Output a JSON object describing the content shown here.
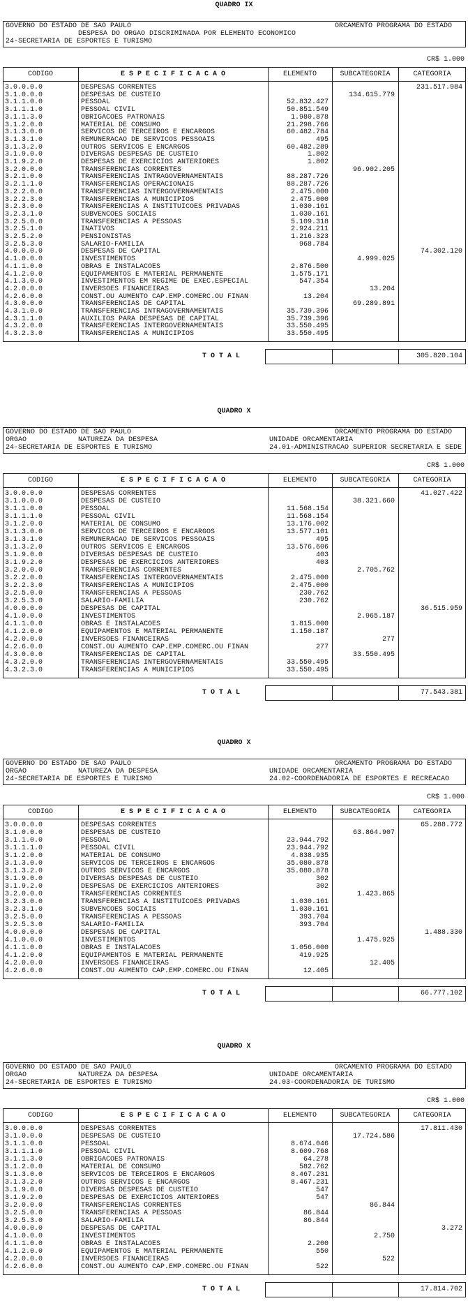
{
  "sections": [
    {
      "title": "QUADRO IX",
      "header": [
        [
          "GOVERNO DO ESTADO DE SAO PAULO",
          null,
          null,
          "ORCAMENTO PROGRAMA DO ESTADO"
        ],
        [
          null,
          "DESPESA DO ORGAO DISCRIMINADA POR ELEMENTO ECONOMICO",
          null,
          null
        ],
        [
          "24-SECRETARIA DE ESPORTES E TURISMO",
          null,
          null,
          null
        ]
      ],
      "currency": "CR$ 1.000",
      "columns": [
        "CODIGO",
        "E S P E C I F I C A C A O",
        "ELEMENTO",
        "SUBCATEGORIA",
        "CATEGORIA"
      ],
      "rows": [
        {
          "code": "3.0.0.0.0",
          "spec": "DESPESAS CORRENTES",
          "categoria": "231.517.984"
        },
        {
          "code": "3.1.0.0.0",
          "spec": "DESPESAS DE CUSTEIO",
          "subcategoria": "134.615.779"
        },
        {
          "code": "3.1.1.0.0",
          "spec": "PESSOAL",
          "elemento": "52.832.427"
        },
        {
          "code": "3.1.1.1.0",
          "spec": "PESSOAL CIVIL",
          "elemento": "50.851.549"
        },
        {
          "code": "3.1.1.3.0",
          "spec": "OBRIGACOES PATRONAIS",
          "elemento": "1.980.878"
        },
        {
          "code": "3.1.2.0.0",
          "spec": "MATERIAL DE CONSUMO",
          "elemento": "21.298.766"
        },
        {
          "code": "3.1.3.0.0",
          "spec": "SERVICOS DE TERCEIROS E ENCARGOS",
          "elemento": "60.482.784"
        },
        {
          "code": "3.1.3.1.0",
          "spec": "REMUNERACAO DE SERVICOS PESSOAIS",
          "elemento": "495"
        },
        {
          "code": "3.1.3.2.0",
          "spec": "OUTROS SERVICOS E ENCARGOS",
          "elemento": "60.482.289"
        },
        {
          "code": "3.1.9.0.0",
          "spec": "DIVERSAS DESPESAS DE CUSTEIO",
          "elemento": "1.802"
        },
        {
          "code": "3.1.9.2.0",
          "spec": "DESPESAS DE EXERCICIOS ANTERIORES",
          "elemento": "1.802"
        },
        {
          "code": "3.2.0.0.0",
          "spec": "TRANSFERENCIAS CORRENTES",
          "subcategoria": "96.902.205"
        },
        {
          "code": "3.2.1.0.0",
          "spec": "TRANSFERENCIAS INTRAGOVERNAMENTAIS",
          "elemento": "88.287.726"
        },
        {
          "code": "3.2.1.1.0",
          "spec": "TRANSFERENCIAS OPERACIONAIS",
          "elemento": "88.287.726"
        },
        {
          "code": "3.2.2.0.0",
          "spec": "TRANSFERENCIAS INTERGOVERNAMENTAIS",
          "elemento": "2.475.000"
        },
        {
          "code": "3.2.2.3.0",
          "spec": "TRANSFERENCIAS A MUNICIPIOS",
          "elemento": "2.475.000"
        },
        {
          "code": "3.2.3.0.0",
          "spec": "TRANSFERENCIAS A INSTITUICOES PRIVADAS",
          "elemento": "1.030.161"
        },
        {
          "code": "3.2.3.1.0",
          "spec": "SUBVENCOES SOCIAIS",
          "elemento": "1.030.161"
        },
        {
          "code": "3.2.5.0.0",
          "spec": "TRANSFERENCIAS A PESSOAS",
          "elemento": "5.109.318"
        },
        {
          "code": "3.2.5.1.0",
          "spec": "INATIVOS",
          "elemento": "2.924.211"
        },
        {
          "code": "3.2.5.2.0",
          "spec": "PENSIONISTAS",
          "elemento": "1.216.323"
        },
        {
          "code": "3.2.5.3.0",
          "spec": "SALARIO-FAMILIA",
          "elemento": "968.784"
        },
        {
          "code": "4.0.0.0.0",
          "spec": "DESPESAS DE CAPITAL",
          "categoria": "74.302.120"
        },
        {
          "code": "4.1.0.0.0",
          "spec": "INVESTIMENTOS",
          "subcategoria": "4.999.025"
        },
        {
          "code": "4.1.1.0.0",
          "spec": "OBRAS E INSTALACOES",
          "elemento": "2.876.500"
        },
        {
          "code": "4.1.2.0.0",
          "spec": "EQUIPAMENTOS E MATERIAL PERMANENTE",
          "elemento": "1.575.171"
        },
        {
          "code": "4.1.3.0.0",
          "spec": "INVESTIMENTOS EM REGIME DE EXEC.ESPECIAL",
          "elemento": "547.354"
        },
        {
          "code": "4.2.0.0.0",
          "spec": "INVERSOES FINANCEIRAS",
          "subcategoria": "13.204"
        },
        {
          "code": "4.2.6.0.0",
          "spec": "CONST.OU AUMENTO CAP.EMP.COMERC.OU FINAN",
          "elemento": "13.204"
        },
        {
          "code": "4.3.0.0.0",
          "spec": "TRANSFERENCIAS DE CAPITAL",
          "subcategoria": "69.289.891"
        },
        {
          "code": "4.3.1.0.0",
          "spec": "TRANSFERENCIAS INTRAGOVERNAMENTAIS",
          "elemento": "35.739.396"
        },
        {
          "code": "4.3.1.1.0",
          "spec": "AUXILIOS PARA DESPESAS DE CAPITAL",
          "elemento": "35.739.396"
        },
        {
          "code": "4.3.2.0.0",
          "spec": "TRANSFERENCIAS INTERGOVERNAMENTAIS",
          "elemento": "33.550.495"
        },
        {
          "code": "4.3.2.3.0",
          "spec": "TRANSFERENCIAS A MUNICIPIOS",
          "elemento": "33.550.495"
        }
      ],
      "total_label": "T O T A L",
      "total": "305.820.104"
    },
    {
      "title": "QUADRO X",
      "header": [
        [
          "GOVERNO DO ESTADO DE SAO PAULO",
          null,
          null,
          "ORCAMENTO PROGRAMA DO ESTADO"
        ],
        [
          "ORGAO",
          "NATUREZA DA DESPESA",
          "UNIDADE ORCAMENTARIA",
          null
        ],
        [
          "24-SECRETARIA DE ESPORTES E TURISMO",
          null,
          "24.01-ADMINISTRACAO SUPERIOR SECRETARIA E SEDE",
          null
        ]
      ],
      "currency": "CR$ 1.000",
      "columns": [
        "CODIGO",
        "E S P E C I F I C A C A O",
        "ELEMENTO",
        "SUBCATEGORIA",
        "CATEGORIA"
      ],
      "rows": [
        {
          "code": "3.0.0.0.0",
          "spec": "DESPESAS CORRENTES",
          "categoria": "41.027.422"
        },
        {
          "code": "3.1.0.0.0",
          "spec": "DESPESAS DE CUSTEIO",
          "subcategoria": "38.321.660"
        },
        {
          "code": "3.1.1.0.0",
          "spec": "PESSOAL",
          "elemento": "11.568.154"
        },
        {
          "code": "3.1.1.1.0",
          "spec": "PESSOAL CIVIL",
          "elemento": "11.568.154"
        },
        {
          "code": "3.1.2.0.0",
          "spec": "MATERIAL DE CONSUMO",
          "elemento": "13.176.002"
        },
        {
          "code": "3.1.3.0.0",
          "spec": "SERVICOS DE TERCEIROS E ENCARGOS",
          "elemento": "13.577.101"
        },
        {
          "code": "3.1.3.1.0",
          "spec": "REMUNERACAO DE SERVICOS PESSOAIS",
          "elemento": "495"
        },
        {
          "code": "3.1.3.2.0",
          "spec": "OUTROS SERVICOS E ENCARGOS",
          "elemento": "13.576.606"
        },
        {
          "code": "3.1.9.0.0",
          "spec": "DIVERSAS DESPESAS DE CUSTEIO",
          "elemento": "403"
        },
        {
          "code": "3.1.9.2.0",
          "spec": "DESPESAS DE EXERCICIOS ANTERIORES",
          "elemento": "403"
        },
        {
          "code": "3.2.0.0.0",
          "spec": "TRANSFERENCIAS CORRENTES",
          "subcategoria": "2.705.762"
        },
        {
          "code": "3.2.2.0.0",
          "spec": "TRANSFERENCIAS INTERGOVERNAMENTAIS",
          "elemento": "2.475.000"
        },
        {
          "code": "3.2.2.3.0",
          "spec": "TRANSFERENCIAS A MUNICIPIOS",
          "elemento": "2.475.000"
        },
        {
          "code": "3.2.5.0.0",
          "spec": "TRANSFERENCIAS A PESSOAS",
          "elemento": "230.762"
        },
        {
          "code": "3.2.5.3.0",
          "spec": "SALARIO-FAMILIA",
          "elemento": "230.762"
        },
        {
          "code": "4.0.0.0.0",
          "spec": "DESPESAS DE CAPITAL",
          "categoria": "36.515.959"
        },
        {
          "code": "4.1.0.0.0",
          "spec": "INVESTIMENTOS",
          "subcategoria": "2.965.187"
        },
        {
          "code": "4.1.1.0.0",
          "spec": "OBRAS E INSTALACOES",
          "elemento": "1.815.000"
        },
        {
          "code": "4.1.2.0.0",
          "spec": "EQUIPAMENTOS E MATERIAL PERMANENTE",
          "elemento": "1.150.187"
        },
        {
          "code": "4.2.0.0.0",
          "spec": "INVERSOES FINANCEIRAS",
          "subcategoria": "277"
        },
        {
          "code": "4.2.6.0.0",
          "spec": "CONST.OU AUMENTO CAP.EMP.COMERC.OU FINAN",
          "elemento": "277"
        },
        {
          "code": "4.3.0.0.0",
          "spec": "TRANSFERENCIAS DE CAPITAL",
          "subcategoria": "33.550.495"
        },
        {
          "code": "4.3.2.0.0",
          "spec": "TRANSFERENCIAS INTERGOVERNAMENTAIS",
          "elemento": "33.550.495"
        },
        {
          "code": "4.3.2.3.0",
          "spec": "TRANSFERENCIAS A MUNICIPIOS",
          "elemento": "33.550.495"
        }
      ],
      "total_label": "T O T A L",
      "total": "77.543.381"
    },
    {
      "title": "QUADRO X",
      "header": [
        [
          "GOVERNO DO ESTADO DE SAO PAULO",
          null,
          null,
          "ORCAMENTO PROGRAMA DO ESTADO"
        ],
        [
          "ORGAO",
          "NATUREZA DA DESPESA",
          "UNIDADE ORCAMENTARIA",
          null
        ],
        [
          "24-SECRETARIA DE ESPORTES E TURISMO",
          null,
          "24.02-COORDENADORIA DE ESPORTES E RECREACAO",
          null
        ]
      ],
      "currency": "CR$ 1.000",
      "columns": [
        "CODIGO",
        "E S P E C I F I C A C A O",
        "ELEMENTO",
        "SUBCATEGORIA",
        "CATEGORIA"
      ],
      "rows": [
        {
          "code": "3.0.0.0.0",
          "spec": "DESPESAS CORRENTES",
          "categoria": "65.288.772"
        },
        {
          "code": "3.1.0.0.0",
          "spec": "DESPESAS DE CUSTEIO",
          "subcategoria": "63.864.907"
        },
        {
          "code": "3.1.1.0.0",
          "spec": "PESSOAL",
          "elemento": "23.944.792"
        },
        {
          "code": "3.1.1.1.0",
          "spec": "PESSOAL CIVIL",
          "elemento": "23.944.792"
        },
        {
          "code": "3.1.2.0.0",
          "spec": "MATERIAL DE CONSUMO",
          "elemento": "4.838.935"
        },
        {
          "code": "3.1.3.0.0",
          "spec": "SERVICOS DE TERCEIROS E ENCARGOS",
          "elemento": "35.080.878"
        },
        {
          "code": "3.1.3.2.0",
          "spec": "OUTROS SERVICOS E ENCARGOS",
          "elemento": "35.080.878"
        },
        {
          "code": "3.1.9.0.0",
          "spec": "DIVERSAS DESPESAS DE CUSTEIO",
          "elemento": "302"
        },
        {
          "code": "3.1.9.2.0",
          "spec": "DESPESAS DE EXERCICIOS ANTERIORES",
          "elemento": "302"
        },
        {
          "code": "3.2.0.0.0",
          "spec": "TRANSFERENCIAS CORRENTES",
          "subcategoria": "1.423.865"
        },
        {
          "code": "3.2.3.0.0",
          "spec": "TRANSFERENCIAS A INSTITUICOES PRIVADAS",
          "elemento": "1.030.161"
        },
        {
          "code": "3.2.3.1.0",
          "spec": "SUBVENCOES SOCIAIS",
          "elemento": "1.030.161"
        },
        {
          "code": "3.2.5.0.0",
          "spec": "TRANSFERENCIAS A PESSOAS",
          "elemento": "393.704"
        },
        {
          "code": "3.2.5.3.0",
          "spec": "SALARIO-FAMILIA",
          "elemento": "393.704"
        },
        {
          "code": "4.0.0.0.0",
          "spec": "DESPESAS DE CAPITAL",
          "categoria": "1.488.330"
        },
        {
          "code": "4.1.0.0.0",
          "spec": "INVESTIMENTOS",
          "subcategoria": "1.475.925"
        },
        {
          "code": "4.1.1.0.0",
          "spec": "OBRAS E INSTALACOES",
          "elemento": "1.056.000"
        },
        {
          "code": "4.1.2.0.0",
          "spec": "EQUIPAMENTOS E MATERIAL PERMANENTE",
          "elemento": "419.925"
        },
        {
          "code": "4.2.0.0.0",
          "spec": "INVERSOES FINANCEIRAS",
          "subcategoria": "12.405"
        },
        {
          "code": "4.2.6.0.0",
          "spec": "CONST.OU AUMENTO CAP.EMP.COMERC.OU FINAN",
          "elemento": "12.405"
        }
      ],
      "total_label": "T O T A L",
      "total": "66.777.102"
    },
    {
      "title": "QUADRO X",
      "header": [
        [
          "GOVERNO DO ESTADO DE SAO PAULO",
          null,
          null,
          "ORCAMENTO PROGRAMA DO ESTADO"
        ],
        [
          "ORGAO",
          "NATUREZA DA DESPESA",
          "UNIDADE ORCAMENTARIA",
          null
        ],
        [
          "24-SECRETARIA DE ESPORTES E TURISMO",
          null,
          "24.03-COORDENADORIA DE TURISMO",
          null
        ]
      ],
      "currency": "CR$ 1.000",
      "columns": [
        "CODIGO",
        "E S P E C I F I C A C A O",
        "ELEMENTO",
        "SUBCATEGORIA",
        "CATEGORIA"
      ],
      "rows": [
        {
          "code": "3.0.0.0.0",
          "spec": "DESPESAS CORRENTES",
          "categoria": "17.811.430"
        },
        {
          "code": "3.1.0.0.0",
          "spec": "DESPESAS DE CUSTEIO",
          "subcategoria": "17.724.586"
        },
        {
          "code": "3.1.1.0.0",
          "spec": "PESSOAL",
          "elemento": "8.674.046"
        },
        {
          "code": "3.1.1.1.0",
          "spec": "PESSOAL CIVIL",
          "elemento": "8.609.768"
        },
        {
          "code": "3.1.1.3.0",
          "spec": "OBRIGACOES PATRONAIS",
          "elemento": "64.278"
        },
        {
          "code": "3.1.2.0.0",
          "spec": "MATERIAL DE CONSUMO",
          "elemento": "582.762"
        },
        {
          "code": "3.1.3.0.0",
          "spec": "SERVICOS DE TERCEIROS E ENCARGOS",
          "elemento": "8.467.231"
        },
        {
          "code": "3.1.3.2.0",
          "spec": "OUTROS SERVICOS E ENCARGOS",
          "elemento": "8.467.231"
        },
        {
          "code": "3.1.9.0.0",
          "spec": "DIVERSAS DESPESAS DE CUSTEIO",
          "elemento": "547"
        },
        {
          "code": "3.1.9.2.0",
          "spec": "DESPESAS DE EXERCICIOS ANTERIORES",
          "elemento": "547"
        },
        {
          "code": "3.2.0.0.0",
          "spec": "TRANSFERENCIAS CORRENTES",
          "subcategoria": "86.844"
        },
        {
          "code": "3.2.5.0.0",
          "spec": "TRANSFERENCIAS A PESSOAS",
          "elemento": "86.844"
        },
        {
          "code": "3.2.5.3.0",
          "spec": "SALARIO-FAMILIA",
          "elemento": "86.844"
        },
        {
          "code": "4.0.0.0.0",
          "spec": "DESPESAS DE CAPITAL",
          "categoria": "3.272"
        },
        {
          "code": "4.1.0.0.0",
          "spec": "INVESTIMENTOS",
          "subcategoria": "2.750"
        },
        {
          "code": "4.1.1.0.0",
          "spec": "OBRAS E INSTALACOES",
          "elemento": "2.200"
        },
        {
          "code": "4.1.2.0.0",
          "spec": "EQUIPAMENTOS E MATERIAL PERMANENTE",
          "elemento": "550"
        },
        {
          "code": "4.2.0.0.0",
          "spec": "INVERSOES FINANCEIRAS",
          "subcategoria": "522"
        },
        {
          "code": "4.2.6.0.0",
          "spec": "CONST.OU AUMENTO CAP.EMP.COMERC.OU FINAN",
          "elemento": "522"
        }
      ],
      "total_label": "T O T A L",
      "total": "17.814.702"
    }
  ]
}
